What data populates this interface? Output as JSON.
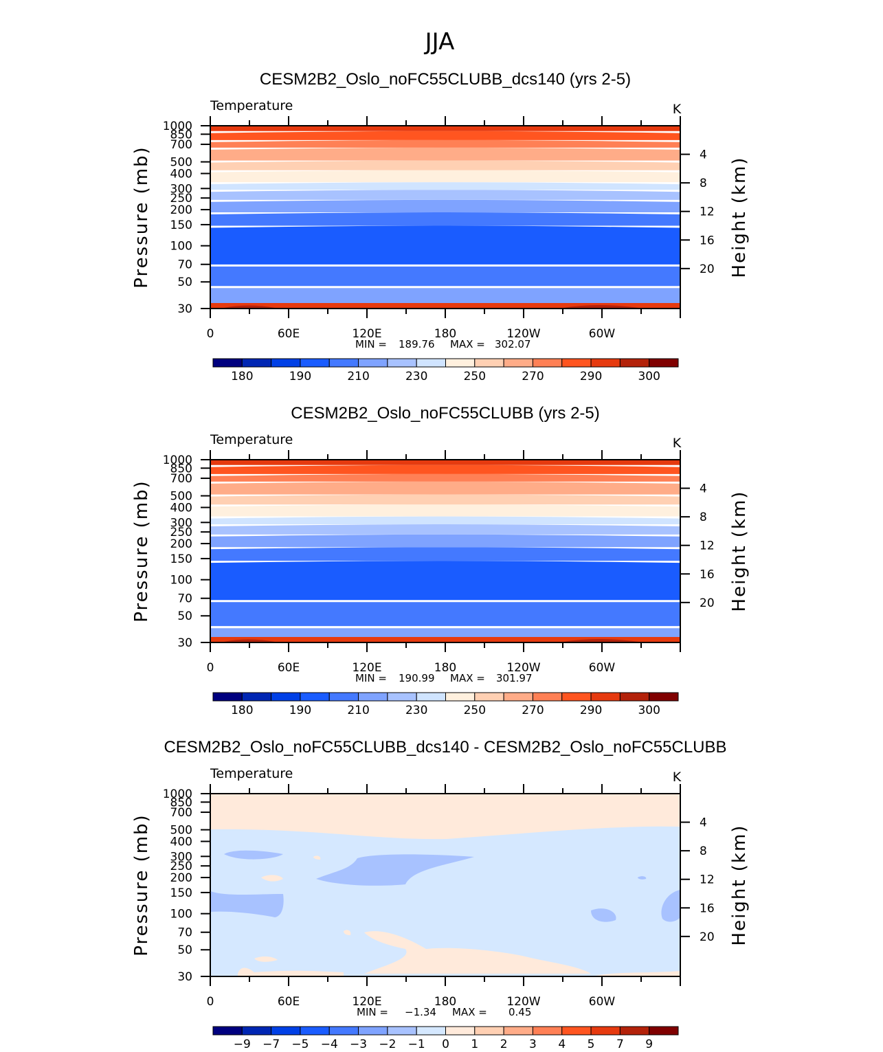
{
  "page_title": "JJA",
  "colors": {
    "temperature_levels": [
      "#00007f",
      "#0026b3",
      "#0040e6",
      "#1a5cff",
      "#4479ff",
      "#7fa3ff",
      "#a8c2ff",
      "#d0e4ff",
      "#fff0de",
      "#ffd0b3",
      "#ffac88",
      "#ff8055",
      "#ff5520",
      "#e63a0f",
      "#b3220a",
      "#800000"
    ],
    "difference_levels": [
      "#00007f",
      "#0026b3",
      "#0040e6",
      "#1a5cff",
      "#4479ff",
      "#7fa3ff",
      "#a8c2ff",
      "#d5e8ff",
      "#ffeadb",
      "#ffd0b3",
      "#ffac88",
      "#ff8055",
      "#ff5520",
      "#e63a0f",
      "#b3220a",
      "#800000"
    ]
  },
  "chart_data": [
    {
      "type": "heatmap",
      "title": "CESM2B2_Oslo_noFC55CLUBB_dcs140 (yrs 2-5)",
      "variable": "Temperature",
      "units": "K",
      "ylabel_left": "Pressure (mb)",
      "ylabel_right": "Height (km)",
      "pressure_ticks": [
        "30",
        "50",
        "70",
        "100",
        "150",
        "200",
        "250",
        "300",
        "400",
        "500",
        "700",
        "850",
        "1000"
      ],
      "pressure_values": [
        30,
        50,
        70,
        100,
        150,
        200,
        250,
        300,
        400,
        500,
        700,
        850,
        1000
      ],
      "height_ticks": [
        "20",
        "16",
        "12",
        "8",
        "4"
      ],
      "height_values": [
        20,
        16,
        12,
        8,
        4
      ],
      "x_ticks": [
        "0",
        "60E",
        "120E",
        "180",
        "120W",
        "60W"
      ],
      "x_values": [
        0,
        60,
        120,
        180,
        240,
        300
      ],
      "xlim": [
        0,
        360
      ],
      "ylim": [
        1000,
        30
      ],
      "stats": {
        "min_label": "MIN =",
        "min": "189.76",
        "max_label": "MAX =",
        "max": "302.07"
      },
      "colorbar_labels": [
        "180",
        "190",
        "210",
        "230",
        "250",
        "270",
        "290",
        "300"
      ],
      "band_boundaries_mb": [
        30,
        45,
        68,
        143,
        185,
        235,
        285,
        330,
        415,
        500,
        640,
        740,
        880,
        1000
      ],
      "band_color_index": [
        5,
        4,
        3,
        4,
        5,
        6,
        7,
        8,
        9,
        10,
        11,
        12,
        13
      ]
    },
    {
      "type": "heatmap",
      "title": "CESM2B2_Oslo_noFC55CLUBB (yrs 2-5)",
      "variable": "Temperature",
      "units": "K",
      "ylabel_left": "Pressure (mb)",
      "ylabel_right": "Height (km)",
      "pressure_ticks": [
        "30",
        "50",
        "70",
        "100",
        "150",
        "200",
        "250",
        "300",
        "400",
        "500",
        "700",
        "850",
        "1000"
      ],
      "pressure_values": [
        30,
        50,
        70,
        100,
        150,
        200,
        250,
        300,
        400,
        500,
        700,
        850,
        1000
      ],
      "height_ticks": [
        "20",
        "16",
        "12",
        "8",
        "4"
      ],
      "height_values": [
        20,
        16,
        12,
        8,
        4
      ],
      "x_ticks": [
        "0",
        "60E",
        "120E",
        "180",
        "120W",
        "60W"
      ],
      "x_values": [
        0,
        60,
        120,
        180,
        240,
        300
      ],
      "xlim": [
        0,
        360
      ],
      "ylim": [
        1000,
        30
      ],
      "stats": {
        "min_label": "MIN =",
        "min": "190.99",
        "max_label": "MAX =",
        "max": "301.97"
      },
      "colorbar_labels": [
        "180",
        "190",
        "210",
        "230",
        "250",
        "270",
        "290",
        "300"
      ],
      "band_boundaries_mb": [
        30,
        40,
        66,
        140,
        182,
        232,
        282,
        328,
        412,
        500,
        640,
        740,
        880,
        1000
      ],
      "band_color_index": [
        5,
        4,
        3,
        4,
        5,
        6,
        7,
        8,
        9,
        10,
        11,
        12,
        13
      ]
    },
    {
      "type": "heatmap",
      "title": "CESM2B2_Oslo_noFC55CLUBB_dcs140 - CESM2B2_Oslo_noFC55CLUBB",
      "variable": "Temperature",
      "units": "K",
      "ylabel_left": "Pressure (mb)",
      "ylabel_right": "Height (km)",
      "pressure_ticks": [
        "30",
        "50",
        "70",
        "100",
        "150",
        "200",
        "250",
        "300",
        "400",
        "500",
        "700",
        "850",
        "1000"
      ],
      "pressure_values": [
        30,
        50,
        70,
        100,
        150,
        200,
        250,
        300,
        400,
        500,
        700,
        850,
        1000
      ],
      "height_ticks": [
        "20",
        "16",
        "12",
        "8",
        "4"
      ],
      "height_values": [
        20,
        16,
        12,
        8,
        4
      ],
      "x_ticks": [
        "0",
        "60E",
        "120E",
        "180",
        "120W",
        "60W"
      ],
      "x_values": [
        0,
        60,
        120,
        180,
        240,
        300
      ],
      "xlim": [
        0,
        360
      ],
      "ylim": [
        1000,
        30
      ],
      "stats": {
        "min_label": "MIN =",
        "min": "−1.34",
        "max_label": "MAX =",
        "max": "0.45"
      },
      "colorbar_labels": [
        "−9",
        "−7",
        "−5",
        "−4",
        "−3",
        "−2",
        "−1",
        "0",
        "1",
        "2",
        "3",
        "4",
        "5",
        "7",
        "9"
      ]
    }
  ]
}
